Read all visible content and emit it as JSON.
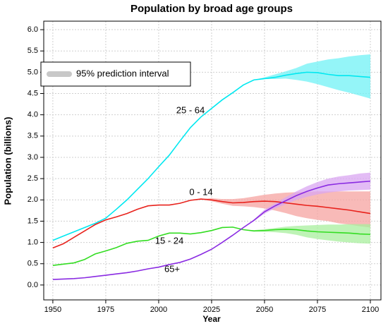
{
  "chart_data": {
    "type": "line",
    "title": "Population by broad age groups",
    "x_label": "Year",
    "y_label": "Population (billions)",
    "legend": "95% prediction interval",
    "x": [
      1950,
      1955,
      1960,
      1965,
      1970,
      1975,
      1980,
      1985,
      1990,
      1995,
      2000,
      2005,
      2010,
      2015,
      2020,
      2025,
      2030,
      2035,
      2040,
      2045,
      2050,
      2055,
      2060,
      2065,
      2070,
      2075,
      2080,
      2085,
      2090,
      2095,
      2100
    ],
    "series": [
      {
        "name": "25 - 64",
        "color": "#00e8f0",
        "band_color": "#70f2f6",
        "values": [
          1.05,
          1.15,
          1.25,
          1.35,
          1.45,
          1.57,
          1.78,
          2.0,
          2.25,
          2.5,
          2.78,
          3.05,
          3.38,
          3.7,
          3.95,
          4.15,
          4.35,
          4.52,
          4.7,
          4.82,
          4.85,
          4.88,
          4.93,
          4.97,
          5.0,
          4.99,
          4.95,
          4.92,
          4.92,
          4.9,
          4.88
        ],
        "lower": [
          null,
          null,
          null,
          null,
          null,
          null,
          null,
          null,
          null,
          null,
          null,
          null,
          null,
          null,
          null,
          null,
          null,
          null,
          null,
          4.82,
          4.84,
          4.84,
          4.85,
          4.82,
          4.78,
          4.72,
          4.65,
          4.58,
          4.52,
          4.45,
          4.38
        ],
        "upper": [
          null,
          null,
          null,
          null,
          null,
          null,
          null,
          null,
          null,
          null,
          null,
          null,
          null,
          null,
          null,
          null,
          null,
          null,
          null,
          4.82,
          4.88,
          4.95,
          5.02,
          5.1,
          5.2,
          5.25,
          5.3,
          5.33,
          5.37,
          5.4,
          5.42
        ]
      },
      {
        "name": "0 - 14",
        "color": "#e8221c",
        "band_color": "#f5a3a0",
        "values": [
          0.87,
          0.97,
          1.12,
          1.27,
          1.42,
          1.53,
          1.6,
          1.68,
          1.78,
          1.86,
          1.88,
          1.88,
          1.92,
          1.99,
          2.02,
          2.0,
          1.96,
          1.93,
          1.94,
          1.96,
          1.97,
          1.96,
          1.93,
          1.9,
          1.87,
          1.85,
          1.82,
          1.79,
          1.76,
          1.72,
          1.68
        ],
        "lower": [
          null,
          null,
          null,
          null,
          null,
          null,
          null,
          null,
          null,
          null,
          null,
          null,
          null,
          null,
          2.02,
          1.97,
          1.91,
          1.86,
          1.85,
          1.83,
          1.8,
          1.75,
          1.69,
          1.62,
          1.57,
          1.53,
          1.5,
          1.45,
          1.42,
          1.38,
          1.35
        ],
        "upper": [
          null,
          null,
          null,
          null,
          null,
          null,
          null,
          null,
          null,
          null,
          null,
          null,
          null,
          null,
          2.02,
          2.04,
          2.02,
          2.02,
          2.04,
          2.08,
          2.12,
          2.15,
          2.17,
          2.18,
          2.19,
          2.2,
          2.2,
          2.2,
          2.2,
          2.2,
          2.2
        ]
      },
      {
        "name": "15 - 24",
        "color": "#33dd22",
        "band_color": "#a8ef9e",
        "values": [
          0.46,
          0.49,
          0.52,
          0.6,
          0.73,
          0.8,
          0.88,
          0.98,
          1.03,
          1.05,
          1.15,
          1.22,
          1.22,
          1.2,
          1.23,
          1.28,
          1.35,
          1.36,
          1.3,
          1.27,
          1.28,
          1.3,
          1.31,
          1.3,
          1.27,
          1.25,
          1.24,
          1.23,
          1.22,
          1.2,
          1.19
        ],
        "lower": [
          null,
          null,
          null,
          null,
          null,
          null,
          null,
          null,
          null,
          null,
          null,
          null,
          null,
          null,
          null,
          null,
          null,
          null,
          1.3,
          1.26,
          1.25,
          1.24,
          1.22,
          1.18,
          1.12,
          1.08,
          1.05,
          1.02,
          1.0,
          0.98,
          0.97
        ],
        "upper": [
          null,
          null,
          null,
          null,
          null,
          null,
          null,
          null,
          null,
          null,
          null,
          null,
          null,
          null,
          null,
          null,
          null,
          null,
          1.3,
          1.29,
          1.31,
          1.34,
          1.37,
          1.39,
          1.4,
          1.41,
          1.42,
          1.42,
          1.43,
          1.43,
          1.43
        ]
      },
      {
        "name": "65+",
        "color": "#8a2be2",
        "band_color": "#d9a6f2",
        "values": [
          0.13,
          0.14,
          0.15,
          0.17,
          0.2,
          0.23,
          0.26,
          0.29,
          0.33,
          0.38,
          0.42,
          0.48,
          0.53,
          0.61,
          0.72,
          0.84,
          1.0,
          1.17,
          1.35,
          1.52,
          1.72,
          1.86,
          1.98,
          2.1,
          2.2,
          2.28,
          2.35,
          2.38,
          2.4,
          2.42,
          2.44
        ],
        "lower": [
          null,
          null,
          null,
          null,
          null,
          null,
          null,
          null,
          null,
          null,
          null,
          null,
          null,
          null,
          null,
          null,
          null,
          null,
          1.35,
          1.5,
          1.68,
          1.8,
          1.9,
          2.0,
          2.07,
          2.13,
          2.17,
          2.2,
          2.22,
          2.23,
          2.24
        ],
        "upper": [
          null,
          null,
          null,
          null,
          null,
          null,
          null,
          null,
          null,
          null,
          null,
          null,
          null,
          null,
          null,
          null,
          null,
          null,
          1.35,
          1.54,
          1.77,
          1.92,
          2.06,
          2.2,
          2.32,
          2.42,
          2.5,
          2.55,
          2.58,
          2.62,
          2.64
        ]
      }
    ],
    "xlim": [
      1945.7,
      2105
    ],
    "xticks": [
      1950,
      1975,
      2000,
      2025,
      2050,
      2075,
      2100
    ],
    "ylim": [
      -0.35,
      6.2
    ],
    "yticks": [
      {
        "value": 0,
        "label": "0.0"
      },
      0.5,
      {
        "value": 1,
        "label": "1.0"
      },
      1.5,
      {
        "value": 2,
        "label": "2.0"
      },
      2.5,
      {
        "value": 3,
        "label": "3.0"
      },
      3.5,
      {
        "value": 4,
        "label": "4.0"
      },
      4.5,
      {
        "value": 5,
        "label": "5.0"
      },
      5.5,
      {
        "value": 6,
        "label": "6.0"
      }
    ],
    "grid": true
  }
}
